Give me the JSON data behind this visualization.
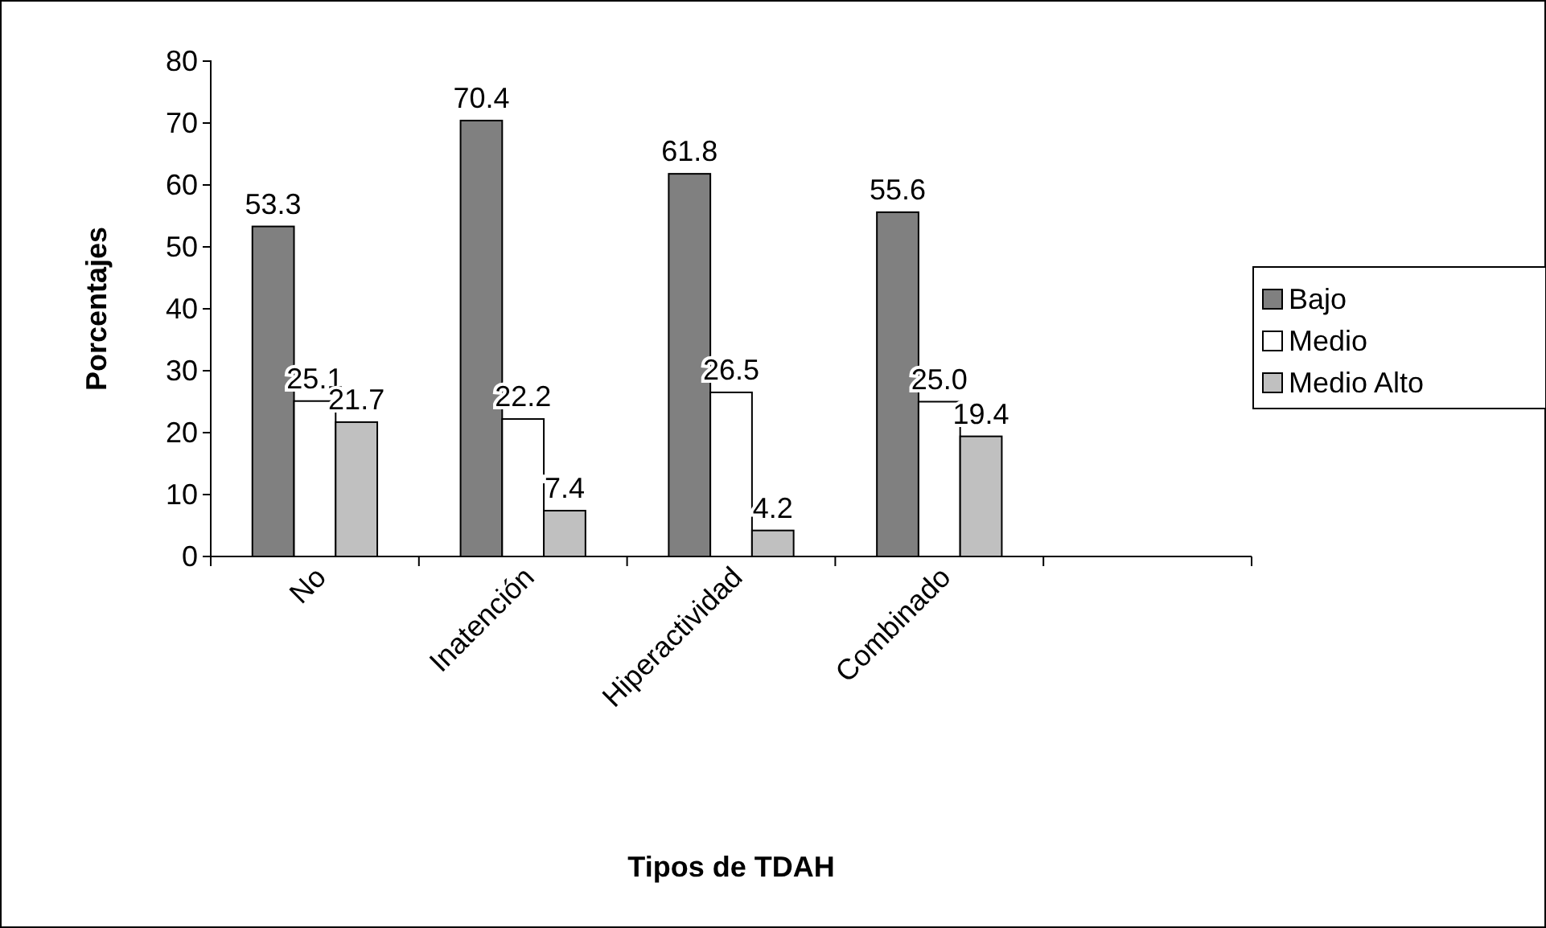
{
  "chart_data": {
    "type": "bar",
    "xlabel": "Tipos de TDAH",
    "ylabel": "Porcentajes",
    "categories": [
      "No",
      "Inatención",
      "Hiperactividad",
      "Combinado",
      null
    ],
    "series": [
      {
        "name": "Bajo",
        "color": "#808080",
        "values": [
          53.3,
          70.4,
          61.8,
          55.6,
          null
        ],
        "value_labels": [
          "53.3",
          "70.4",
          "61.8",
          "55.6",
          null
        ]
      },
      {
        "name": "Medio",
        "color": "#ffffff",
        "values": [
          25.1,
          22.2,
          26.5,
          25.0,
          null
        ],
        "value_labels": [
          "25.1",
          "22.2",
          "26.5",
          "25.0",
          null
        ]
      },
      {
        "name": "Medio Alto",
        "color": "#c0c0c0",
        "values": [
          21.7,
          7.4,
          4.2,
          19.4,
          null
        ],
        "value_labels": [
          "21.7",
          "7.4",
          "4.2",
          "19.4",
          null
        ]
      }
    ],
    "ylim": [
      0,
      80
    ],
    "yticks": [
      0,
      10,
      20,
      30,
      40,
      50,
      60,
      70,
      80
    ],
    "grid": false,
    "legend": "right"
  }
}
